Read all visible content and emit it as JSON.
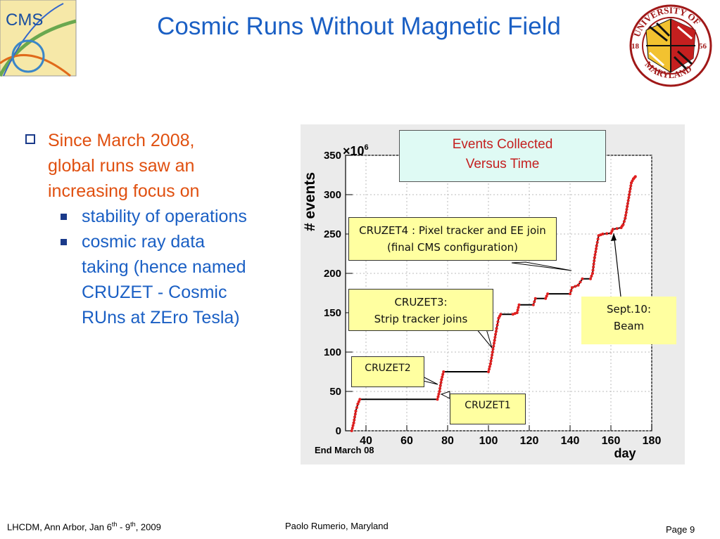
{
  "slide": {
    "title": "Cosmic Runs Without Magnetic Field",
    "cms_logo_text": "CMS",
    "umd_logo": {
      "top": "UNIVERSITY OF",
      "bottom": "MARYLAND",
      "year_left": "18",
      "year_right": "56"
    }
  },
  "bullets": {
    "main": [
      "Since March 2008,",
      "global runs saw an",
      "increasing focus on"
    ],
    "sub1": "stability of operations",
    "sub2": [
      "cosmic ray data",
      "taking (hence named",
      "CRUZET - Cosmic",
      "RUns at ZEro Tesla)"
    ]
  },
  "chart_data": {
    "type": "line",
    "ylabel": "# events",
    "xlabel": "day",
    "y_multiplier": "×10",
    "y_multiplier_exp": "6",
    "x_ticks": [
      "40",
      "60",
      "80",
      "100",
      "120",
      "140",
      "160",
      "180"
    ],
    "y_ticks": [
      "0",
      "50",
      "100",
      "150",
      "200",
      "250",
      "300",
      "350"
    ],
    "xlim": [
      30,
      180
    ],
    "ylim": [
      0,
      350
    ],
    "grid": true,
    "x_annotation": "End March 08",
    "series": [
      {
        "color": "#e02020",
        "points": [
          [
            33,
            0
          ],
          [
            34,
            10
          ],
          [
            35,
            25
          ],
          [
            36,
            34
          ],
          [
            37,
            40
          ],
          [
            75,
            40
          ],
          [
            76,
            50
          ],
          [
            77,
            65
          ],
          [
            78,
            75
          ],
          [
            100,
            75
          ],
          [
            101,
            85
          ],
          [
            102,
            100
          ],
          [
            103,
            115
          ],
          [
            104,
            130
          ],
          [
            105,
            143
          ],
          [
            106,
            148
          ],
          [
            112,
            148
          ],
          [
            114,
            150
          ],
          [
            115,
            160
          ],
          [
            122,
            160
          ],
          [
            123,
            168
          ],
          [
            128,
            168
          ],
          [
            129,
            174
          ],
          [
            140,
            174
          ],
          [
            141,
            182
          ],
          [
            144,
            185
          ],
          [
            146,
            193
          ],
          [
            150,
            193
          ],
          [
            151,
            200
          ],
          [
            152,
            220
          ],
          [
            153,
            235
          ],
          [
            154,
            248
          ],
          [
            156,
            250
          ],
          [
            160,
            251
          ],
          [
            161,
            256
          ],
          [
            165,
            258
          ],
          [
            166,
            262
          ],
          [
            167,
            270
          ],
          [
            168,
            285
          ],
          [
            169,
            300
          ],
          [
            170,
            315
          ],
          [
            171,
            320
          ],
          [
            172,
            323
          ]
        ]
      }
    ],
    "annotations": [
      {
        "text": "Events Collected\nVersus Time"
      },
      {
        "text": "CRUZET4 : Pixel tracker and EE join (final CMS configuration)"
      },
      {
        "text": "CRUZET3:\nStrip tracker joins"
      },
      {
        "text": "CRUZET2"
      },
      {
        "text": "CRUZET1"
      },
      {
        "text": "Sept.10:\nBeam"
      }
    ]
  },
  "footer": {
    "left_prefix": "LHCDM, Ann Arbor, Jan 6",
    "left_sup1": "th",
    "left_mid": " - 9",
    "left_sup2": "th",
    "left_suffix": ", 2009",
    "center": "Paolo Rumerio,  Maryland",
    "right": "Page 9"
  },
  "colors": {
    "title": "#1a5fc4",
    "bullet_main": "#e05010",
    "bullet_sub": "#1a5fc4",
    "curve": "#e02020"
  }
}
